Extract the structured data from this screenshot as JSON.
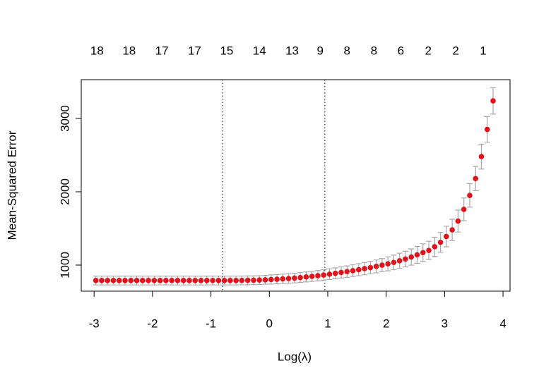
{
  "chart_data": {
    "type": "errorbar-scatter",
    "xlabel": "Log(λ)",
    "ylabel": "Mean-Squared Error",
    "xlim": [
      -3.22,
      4.12
    ],
    "ylim": [
      644,
      3529
    ],
    "xticks": [
      -3,
      -2,
      -1,
      0,
      1,
      2,
      3,
      4
    ],
    "yticks": [
      1000,
      2000,
      3000
    ],
    "top_ticks": [
      {
        "value": -2.95,
        "label": "18"
      },
      {
        "value": -2.4,
        "label": "18"
      },
      {
        "value": -1.84,
        "label": "17"
      },
      {
        "value": -1.28,
        "label": "17"
      },
      {
        "value": -0.73,
        "label": "15"
      },
      {
        "value": -0.17,
        "label": "14"
      },
      {
        "value": 0.39,
        "label": "13"
      },
      {
        "value": 0.87,
        "label": "9"
      },
      {
        "value": 1.33,
        "label": "8"
      },
      {
        "value": 1.79,
        "label": "8"
      },
      {
        "value": 2.25,
        "label": "6"
      },
      {
        "value": 2.72,
        "label": "2"
      },
      {
        "value": 3.19,
        "label": "2"
      },
      {
        "value": 3.66,
        "label": "1"
      }
    ],
    "vlines": [
      -0.8,
      0.95
    ],
    "color": "#e0121c",
    "error_color": "#a8a8a8",
    "x": [
      -2.97,
      -2.87,
      -2.77,
      -2.67,
      -2.57,
      -2.47,
      -2.37,
      -2.27,
      -2.17,
      -2.07,
      -1.97,
      -1.87,
      -1.77,
      -1.67,
      -1.57,
      -1.47,
      -1.37,
      -1.27,
      -1.17,
      -1.07,
      -0.97,
      -0.87,
      -0.77,
      -0.67,
      -0.57,
      -0.47,
      -0.37,
      -0.27,
      -0.17,
      -0.07,
      0.03,
      0.13,
      0.23,
      0.33,
      0.43,
      0.53,
      0.63,
      0.73,
      0.83,
      0.93,
      1.03,
      1.13,
      1.23,
      1.33,
      1.43,
      1.53,
      1.63,
      1.73,
      1.83,
      1.93,
      2.03,
      2.13,
      2.23,
      2.33,
      2.43,
      2.53,
      2.63,
      2.73,
      2.83,
      2.93,
      3.03,
      3.13,
      3.23,
      3.33,
      3.43,
      3.53,
      3.63,
      3.73,
      3.83
    ],
    "values": [
      790,
      790,
      790,
      790,
      790,
      790,
      790,
      790,
      790,
      790,
      790,
      790,
      790,
      790,
      790,
      790,
      790,
      790,
      790,
      790,
      790,
      790,
      790,
      790,
      790,
      791,
      792,
      794,
      796,
      799,
      803,
      807,
      812,
      817,
      823,
      830,
      838,
      846,
      855,
      865,
      876,
      887,
      899,
      911,
      924,
      937,
      951,
      966,
      982,
      999,
      1017,
      1037,
      1059,
      1083,
      1110,
      1140,
      1170,
      1200,
      1250,
      1310,
      1390,
      1480,
      1600,
      1760,
      1950,
      2180,
      2480,
      2850,
      3240
    ],
    "error": [
      60,
      60,
      60,
      60,
      60,
      60,
      60,
      60,
      60,
      60,
      60,
      60,
      60,
      60,
      60,
      60,
      60,
      60,
      60,
      60,
      60,
      60,
      60,
      60,
      60,
      60,
      60,
      60,
      60,
      60,
      62,
      63,
      64,
      65,
      66,
      67,
      68,
      69,
      70,
      71,
      72,
      74,
      76,
      78,
      80,
      82,
      84,
      86,
      88,
      90,
      95,
      99,
      103,
      107,
      111,
      115,
      120,
      125,
      130,
      135,
      140,
      145,
      150,
      155,
      160,
      165,
      170,
      175,
      180
    ]
  }
}
